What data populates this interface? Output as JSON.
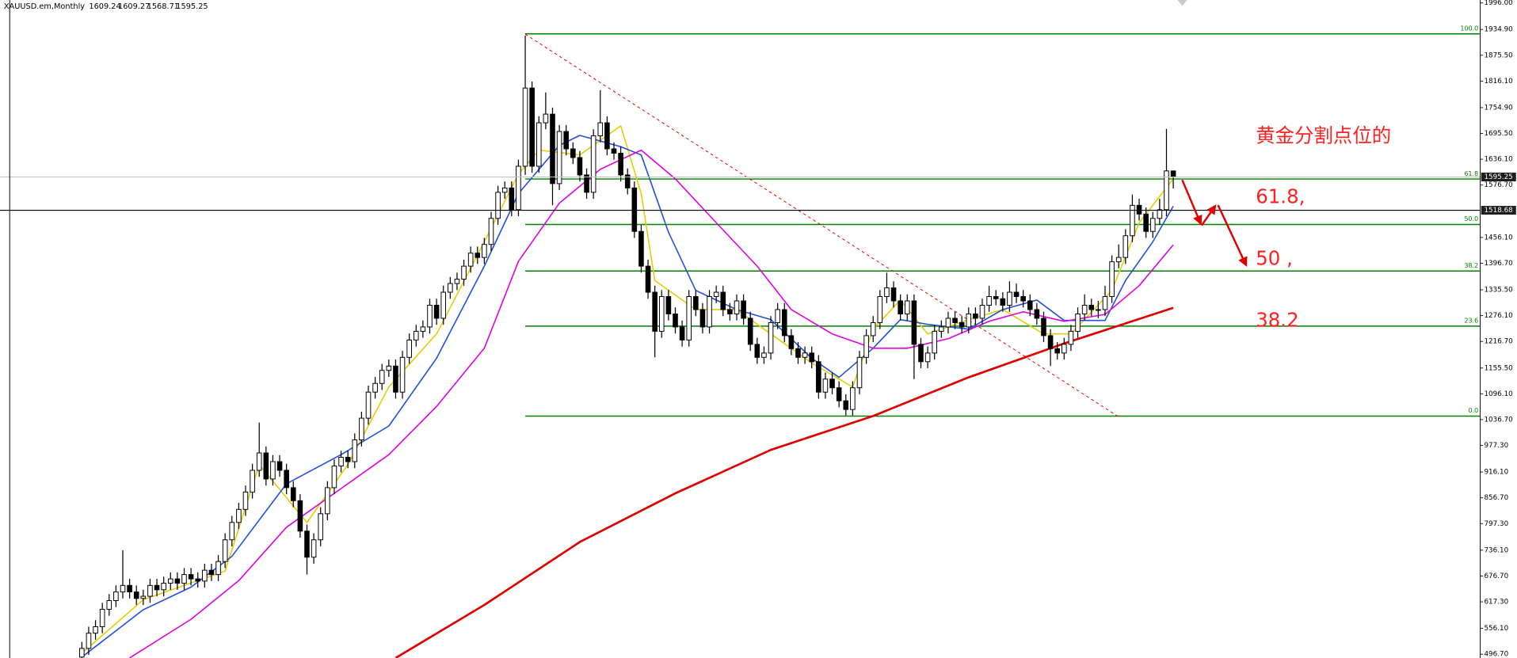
{
  "chart_data": {
    "type": "candlestick",
    "symbol": "XAUUSD.em,Monthly",
    "ohlc": [
      1609.24,
      1609.27,
      1568.71,
      1595.25
    ],
    "xlim": [
      -12,
      205
    ],
    "ylim": [
      487.9,
      2002.7
    ],
    "yticks": [
      {
        "value": 1996,
        "label": "1996.00"
      },
      {
        "value": 1934.9,
        "label": "1934.90"
      },
      {
        "value": 1875.5,
        "label": "1875.50"
      },
      {
        "value": 1816.1,
        "label": "1816.10"
      },
      {
        "value": 1754.9,
        "label": "1754.90"
      },
      {
        "value": 1695.5,
        "label": "1695.50"
      },
      {
        "value": 1636.1,
        "label": "1636.10"
      },
      {
        "value": 1576.7,
        "label": "1576.70"
      },
      {
        "value": 1456.1,
        "label": "1456.10"
      },
      {
        "value": 1396.7,
        "label": "1396.70"
      },
      {
        "value": 1335.5,
        "label": "1335.50"
      },
      {
        "value": 1276.1,
        "label": "1276.10"
      },
      {
        "value": 1216.7,
        "label": "1216.70"
      },
      {
        "value": 1155.5,
        "label": "1155.50"
      },
      {
        "value": 1096.1,
        "label": "1096.10"
      },
      {
        "value": 1036.7,
        "label": "1036.70"
      },
      {
        "value": 977.3,
        "label": "977.30"
      },
      {
        "value": 916.1,
        "label": "916.10"
      },
      {
        "value": 856.7,
        "label": "856.70"
      },
      {
        "value": 797.3,
        "label": "797.30"
      },
      {
        "value": 736.1,
        "label": "736.10"
      },
      {
        "value": 676.7,
        "label": "676.70"
      },
      {
        "value": 617.3,
        "label": "617.30"
      },
      {
        "value": 556.1,
        "label": "556.10"
      },
      {
        "value": 496.7,
        "label": "496.70"
      }
    ],
    "last_price": 1595.25,
    "crosshair": 1518.68,
    "bull_color": "#ffffff",
    "bear_color": "#000000",
    "candles": [
      [
        490,
        525,
        475,
        510
      ],
      [
        510,
        560,
        495,
        545
      ],
      [
        545,
        575,
        530,
        560
      ],
      [
        560,
        615,
        545,
        600
      ],
      [
        600,
        635,
        585,
        620
      ],
      [
        620,
        655,
        605,
        640
      ],
      [
        640,
        736,
        625,
        655
      ],
      [
        655,
        670,
        625,
        640
      ],
      [
        640,
        655,
        610,
        625
      ],
      [
        625,
        645,
        610,
        630
      ],
      [
        630,
        670,
        615,
        655
      ],
      [
        655,
        670,
        630,
        645
      ],
      [
        645,
        675,
        630,
        660
      ],
      [
        660,
        685,
        645,
        670
      ],
      [
        670,
        685,
        645,
        660
      ],
      [
        660,
        695,
        645,
        680
      ],
      [
        680,
        695,
        655,
        670
      ],
      [
        670,
        685,
        650,
        665
      ],
      [
        665,
        705,
        650,
        690
      ],
      [
        690,
        705,
        665,
        680
      ],
      [
        680,
        725,
        665,
        710
      ],
      [
        710,
        775,
        695,
        760
      ],
      [
        760,
        815,
        745,
        800
      ],
      [
        800,
        845,
        785,
        830
      ],
      [
        830,
        885,
        815,
        870
      ],
      [
        870,
        935,
        855,
        920
      ],
      [
        920,
        1030,
        905,
        960
      ],
      [
        960,
        975,
        885,
        900
      ],
      [
        900,
        955,
        885,
        940
      ],
      [
        940,
        955,
        905,
        920
      ],
      [
        920,
        935,
        865,
        880
      ],
      [
        880,
        895,
        835,
        850
      ],
      [
        850,
        865,
        765,
        780
      ],
      [
        780,
        795,
        680,
        720
      ],
      [
        720,
        775,
        705,
        760
      ],
      [
        760,
        835,
        745,
        820
      ],
      [
        820,
        895,
        805,
        880
      ],
      [
        880,
        945,
        865,
        930
      ],
      [
        930,
        965,
        915,
        950
      ],
      [
        950,
        965,
        925,
        940
      ],
      [
        940,
        1005,
        925,
        990
      ],
      [
        990,
        1055,
        975,
        1040
      ],
      [
        1040,
        1115,
        1025,
        1100
      ],
      [
        1100,
        1135,
        1085,
        1120
      ],
      [
        1120,
        1165,
        1105,
        1150
      ],
      [
        1150,
        1175,
        1135,
        1160
      ],
      [
        1160,
        1175,
        1085,
        1100
      ],
      [
        1100,
        1195,
        1085,
        1180
      ],
      [
        1180,
        1235,
        1165,
        1220
      ],
      [
        1220,
        1255,
        1205,
        1240
      ],
      [
        1240,
        1265,
        1225,
        1250
      ],
      [
        1250,
        1315,
        1235,
        1300
      ],
      [
        1300,
        1315,
        1255,
        1270
      ],
      [
        1270,
        1345,
        1255,
        1330
      ],
      [
        1330,
        1365,
        1315,
        1350
      ],
      [
        1350,
        1375,
        1335,
        1360
      ],
      [
        1360,
        1405,
        1345,
        1390
      ],
      [
        1390,
        1435,
        1375,
        1420
      ],
      [
        1420,
        1435,
        1395,
        1410
      ],
      [
        1410,
        1455,
        1395,
        1440
      ],
      [
        1440,
        1515,
        1425,
        1500
      ],
      [
        1500,
        1575,
        1485,
        1560
      ],
      [
        1560,
        1585,
        1545,
        1570
      ],
      [
        1570,
        1585,
        1505,
        1520
      ],
      [
        1520,
        1635,
        1505,
        1620
      ],
      [
        1620,
        1921,
        1600,
        1800
      ],
      [
        1800,
        1815,
        1605,
        1620
      ],
      [
        1620,
        1735,
        1605,
        1720
      ],
      [
        1720,
        1790,
        1705,
        1740
      ],
      [
        1740,
        1755,
        1530,
        1580
      ],
      [
        1580,
        1715,
        1565,
        1700
      ],
      [
        1700,
        1715,
        1645,
        1660
      ],
      [
        1660,
        1675,
        1625,
        1640
      ],
      [
        1640,
        1655,
        1585,
        1600
      ],
      [
        1600,
        1615,
        1545,
        1560
      ],
      [
        1560,
        1705,
        1545,
        1690
      ],
      [
        1690,
        1795,
        1675,
        1720
      ],
      [
        1720,
        1735,
        1645,
        1660
      ],
      [
        1660,
        1675,
        1635,
        1650
      ],
      [
        1650,
        1665,
        1585,
        1600
      ],
      [
        1600,
        1615,
        1555,
        1570
      ],
      [
        1570,
        1585,
        1455,
        1470
      ],
      [
        1470,
        1485,
        1375,
        1390
      ],
      [
        1390,
        1405,
        1315,
        1330
      ],
      [
        1330,
        1345,
        1180,
        1240
      ],
      [
        1240,
        1335,
        1225,
        1320
      ],
      [
        1320,
        1335,
        1265,
        1280
      ],
      [
        1280,
        1295,
        1235,
        1250
      ],
      [
        1250,
        1265,
        1205,
        1220
      ],
      [
        1220,
        1335,
        1205,
        1320
      ],
      [
        1320,
        1335,
        1275,
        1290
      ],
      [
        1290,
        1305,
        1235,
        1250
      ],
      [
        1250,
        1335,
        1235,
        1320
      ],
      [
        1320,
        1345,
        1305,
        1330
      ],
      [
        1330,
        1345,
        1275,
        1290
      ],
      [
        1290,
        1305,
        1265,
        1280
      ],
      [
        1280,
        1325,
        1265,
        1310
      ],
      [
        1310,
        1325,
        1255,
        1270
      ],
      [
        1270,
        1285,
        1195,
        1210
      ],
      [
        1210,
        1225,
        1165,
        1180
      ],
      [
        1180,
        1205,
        1165,
        1190
      ],
      [
        1190,
        1275,
        1175,
        1260
      ],
      [
        1260,
        1305,
        1245,
        1290
      ],
      [
        1290,
        1305,
        1215,
        1230
      ],
      [
        1230,
        1245,
        1185,
        1200
      ],
      [
        1200,
        1215,
        1165,
        1180
      ],
      [
        1180,
        1205,
        1165,
        1190
      ],
      [
        1190,
        1205,
        1155,
        1170
      ],
      [
        1170,
        1185,
        1085,
        1100
      ],
      [
        1100,
        1145,
        1085,
        1130
      ],
      [
        1130,
        1145,
        1095,
        1110
      ],
      [
        1110,
        1125,
        1065,
        1080
      ],
      [
        1080,
        1095,
        1046,
        1060
      ],
      [
        1060,
        1125,
        1046,
        1110
      ],
      [
        1110,
        1195,
        1095,
        1180
      ],
      [
        1180,
        1245,
        1165,
        1230
      ],
      [
        1230,
        1275,
        1215,
        1260
      ],
      [
        1260,
        1335,
        1245,
        1320
      ],
      [
        1320,
        1375,
        1305,
        1340
      ],
      [
        1340,
        1355,
        1295,
        1310
      ],
      [
        1310,
        1325,
        1265,
        1280
      ],
      [
        1280,
        1325,
        1265,
        1310
      ],
      [
        1310,
        1325,
        1130,
        1210
      ],
      [
        1210,
        1225,
        1155,
        1170
      ],
      [
        1170,
        1205,
        1155,
        1190
      ],
      [
        1190,
        1255,
        1175,
        1240
      ],
      [
        1240,
        1265,
        1225,
        1250
      ],
      [
        1250,
        1285,
        1235,
        1270
      ],
      [
        1270,
        1285,
        1245,
        1260
      ],
      [
        1260,
        1275,
        1235,
        1250
      ],
      [
        1250,
        1295,
        1235,
        1280
      ],
      [
        1280,
        1295,
        1255,
        1270
      ],
      [
        1270,
        1315,
        1255,
        1300
      ],
      [
        1300,
        1345,
        1285,
        1320
      ],
      [
        1320,
        1335,
        1300,
        1315
      ],
      [
        1315,
        1330,
        1285,
        1300
      ],
      [
        1300,
        1355,
        1285,
        1330
      ],
      [
        1330,
        1350,
        1305,
        1320
      ],
      [
        1320,
        1335,
        1295,
        1310
      ],
      [
        1310,
        1325,
        1275,
        1290
      ],
      [
        1290,
        1305,
        1255,
        1270
      ],
      [
        1270,
        1285,
        1215,
        1230
      ],
      [
        1230,
        1245,
        1160,
        1200
      ],
      [
        1200,
        1215,
        1175,
        1190
      ],
      [
        1190,
        1225,
        1175,
        1210
      ],
      [
        1210,
        1255,
        1195,
        1240
      ],
      [
        1240,
        1295,
        1225,
        1280
      ],
      [
        1280,
        1325,
        1265,
        1300
      ],
      [
        1300,
        1315,
        1275,
        1290
      ],
      [
        1290,
        1310,
        1270,
        1290
      ],
      [
        1290,
        1345,
        1275,
        1320
      ],
      [
        1320,
        1415,
        1305,
        1400
      ],
      [
        1400,
        1440,
        1385,
        1410
      ],
      [
        1410,
        1475,
        1395,
        1460
      ],
      [
        1460,
        1555,
        1445,
        1530
      ],
      [
        1530,
        1545,
        1495,
        1510
      ],
      [
        1510,
        1525,
        1455,
        1470
      ],
      [
        1470,
        1515,
        1455,
        1500
      ],
      [
        1500,
        1545,
        1485,
        1520
      ],
      [
        1520,
        1706,
        1505,
        1609.24
      ],
      [
        1609.24,
        1609.27,
        1568.71,
        1595.25
      ]
    ],
    "ma": [
      {
        "color": "#e8cc00",
        "x": [
          0,
          9,
          21,
          26,
          33,
          39,
          45,
          52,
          59,
          64,
          67,
          73,
          79,
          82,
          84,
          90,
          96,
          101,
          107,
          113,
          116,
          120,
          124,
          130,
          135,
          141,
          145,
          151,
          155,
          160
        ],
        "values": [
          499,
          622,
          688,
          933,
          800,
          933,
          1112,
          1234,
          1446,
          1602,
          1657,
          1646,
          1713,
          1557,
          1357,
          1290,
          1290,
          1234,
          1167,
          1112,
          1245,
          1312,
          1234,
          1267,
          1290,
          1234,
          1234,
          1334,
          1490,
          1591
        ]
      },
      {
        "color": "#1f4fd8",
        "x": [
          0,
          9,
          16,
          22,
          30,
          38,
          45,
          52,
          59,
          64,
          70,
          73,
          79,
          82,
          86,
          90,
          96,
          101,
          107,
          111,
          116,
          120,
          124,
          130,
          135,
          140,
          144,
          150,
          153,
          157,
          160
        ],
        "values": [
          490,
          599,
          651,
          722,
          889,
          956,
          1022,
          1178,
          1390,
          1557,
          1668,
          1691,
          1665,
          1646,
          1468,
          1334,
          1290,
          1267,
          1178,
          1134,
          1201,
          1267,
          1256,
          1245,
          1290,
          1312,
          1265,
          1265,
          1357,
          1446,
          1528
        ]
      },
      {
        "color": "#e000e0",
        "x": [
          7,
          16,
          23,
          30,
          38,
          45,
          52,
          59,
          64,
          70,
          76,
          82,
          87,
          93,
          99,
          104,
          110,
          116,
          121,
          127,
          133,
          138,
          144,
          150,
          155,
          160
        ],
        "values": [
          488,
          577,
          666,
          789,
          878,
          956,
          1067,
          1201,
          1401,
          1535,
          1613,
          1657,
          1591,
          1490,
          1390,
          1290,
          1234,
          1201,
          1201,
          1223,
          1263,
          1285,
          1263,
          1279,
          1345,
          1439
        ]
      },
      {
        "color": "#e00000",
        "x": [
          46,
          59,
          73,
          87,
          101,
          116,
          130,
          144,
          160
        ],
        "values": [
          488,
          610,
          755,
          867,
          967,
          1045,
          1134,
          1212,
          1294
        ]
      }
    ],
    "trendline": {
      "color": "#e00000",
      "x": [
        65,
        152
      ],
      "values": [
        1924,
        1043
      ]
    },
    "fib": {
      "color": "#008000",
      "levels": [
        {
          "price": 1924.7,
          "label": "100.0"
        },
        {
          "price": 1590.6,
          "label": "61.8"
        },
        {
          "price": 1485.9,
          "label": "50.0"
        },
        {
          "price": 1378.9,
          "label": "38.2"
        },
        {
          "price": 1251.9,
          "label": "23.6"
        },
        {
          "price": 1044.8,
          "label": "0.0"
        }
      ]
    },
    "annotations": [
      "黄金分割点位的",
      "61.8,",
      "50 ,",
      "38.2"
    ]
  }
}
